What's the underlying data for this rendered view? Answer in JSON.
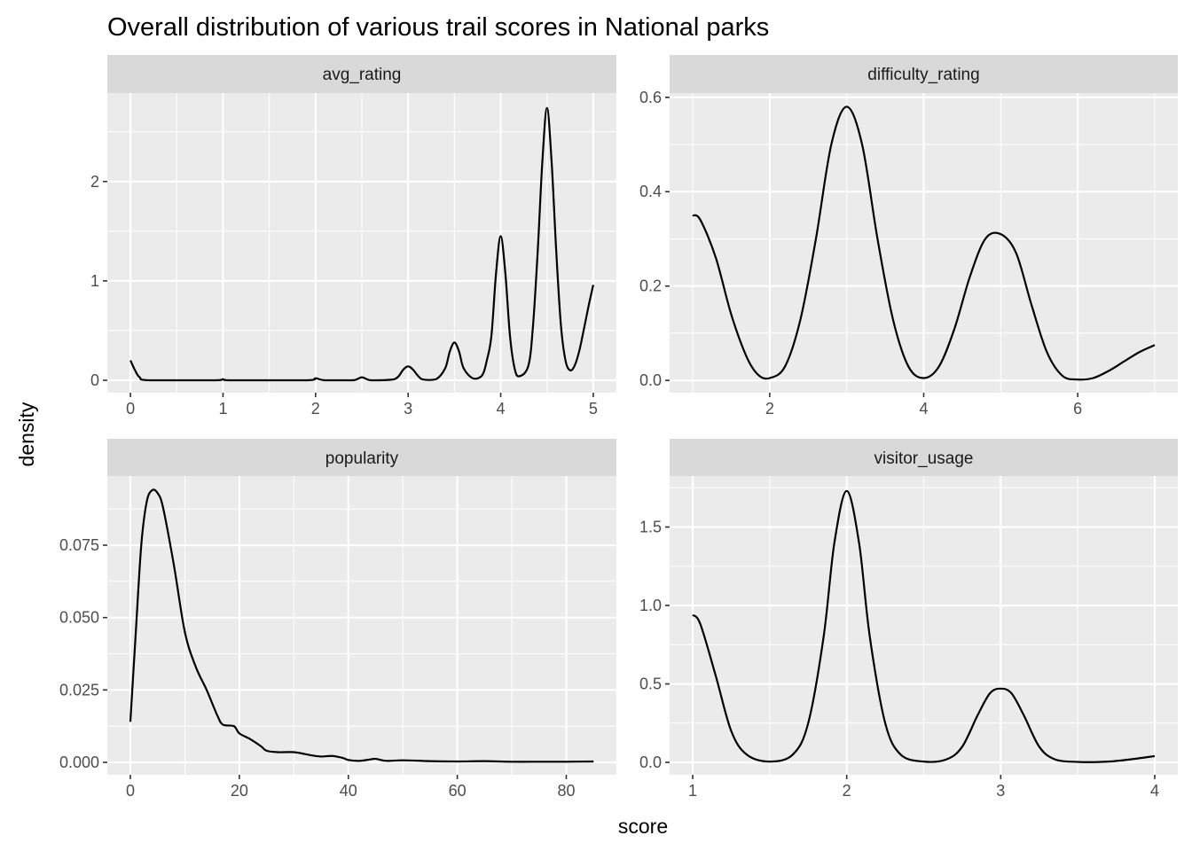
{
  "chart_data": {
    "type": "line",
    "title": "Overall distribution of various trail scores in National parks",
    "xlabel": "score",
    "ylabel": "density",
    "grid": true,
    "facets": [
      {
        "name": "avg_rating",
        "xlim": [
          -0.25,
          5.25
        ],
        "ylim": [
          -0.125,
          2.89
        ],
        "xticks": [
          0,
          1,
          2,
          3,
          4,
          5
        ],
        "xtick_labels": [
          "0",
          "1",
          "2",
          "3",
          "4",
          "5"
        ],
        "xminor": [
          0.5,
          1.5,
          2.5,
          3.5,
          4.5
        ],
        "yticks": [
          0,
          1,
          2
        ],
        "ytick_labels": [
          "0",
          "1",
          "2"
        ],
        "yminor": [
          0.5,
          1.5,
          2.5
        ],
        "x": [
          0,
          0.05,
          0.1,
          0.2,
          0.9,
          1,
          1.1,
          1.9,
          2,
          2.1,
          2.4,
          2.5,
          2.6,
          2.85,
          2.95,
          3,
          3.05,
          3.15,
          3.3,
          3.4,
          3.45,
          3.5,
          3.55,
          3.6,
          3.7,
          3.8,
          3.85,
          3.9,
          3.95,
          4,
          4.05,
          4.1,
          4.15,
          4.2,
          4.3,
          4.35,
          4.4,
          4.45,
          4.5,
          4.55,
          4.6,
          4.65,
          4.7,
          4.75,
          4.8,
          4.85,
          4.9,
          4.95,
          5
        ],
        "y": [
          0.2,
          0.1,
          0.03,
          0,
          0,
          0.01,
          0,
          0,
          0.02,
          0,
          0,
          0.03,
          0,
          0.01,
          0.11,
          0.14,
          0.11,
          0.01,
          0.01,
          0.12,
          0.29,
          0.38,
          0.29,
          0.12,
          0.02,
          0.05,
          0.2,
          0.45,
          1.08,
          1.45,
          1.08,
          0.45,
          0.12,
          0.04,
          0.15,
          0.56,
          1.3,
          2.2,
          2.74,
          2.2,
          1.3,
          0.56,
          0.2,
          0.1,
          0.15,
          0.3,
          0.52,
          0.75,
          0.96
        ]
      },
      {
        "name": "difficulty_rating",
        "xlim": [
          0.7,
          7.3
        ],
        "ylim": [
          -0.026,
          0.609
        ],
        "xticks": [
          2,
          4,
          6
        ],
        "xtick_labels": [
          "2",
          "4",
          "6"
        ],
        "xminor": [
          1,
          3,
          5,
          7
        ],
        "yticks": [
          0,
          0.2,
          0.4,
          0.6
        ],
        "ytick_labels": [
          "0.0",
          "0.2",
          "0.4",
          "0.6"
        ],
        "yminor": [
          0.1,
          0.3,
          0.5
        ],
        "x": [
          1,
          1.1,
          1.3,
          1.5,
          1.7,
          1.85,
          2,
          2.2,
          2.4,
          2.6,
          2.8,
          3,
          3.2,
          3.4,
          3.6,
          3.8,
          4,
          4.2,
          4.4,
          4.6,
          4.8,
          5,
          5.2,
          5.4,
          5.6,
          5.8,
          6,
          6.2,
          6.4,
          6.6,
          6.8,
          7
        ],
        "y": [
          0.35,
          0.34,
          0.26,
          0.14,
          0.05,
          0.012,
          0.005,
          0.03,
          0.13,
          0.3,
          0.5,
          0.58,
          0.5,
          0.3,
          0.13,
          0.03,
          0.005,
          0.03,
          0.11,
          0.22,
          0.3,
          0.31,
          0.27,
          0.16,
          0.06,
          0.01,
          0.002,
          0.005,
          0.02,
          0.04,
          0.06,
          0.075
        ]
      },
      {
        "name": "popularity",
        "xlim": [
          -4.23,
          89.2
        ],
        "ylim": [
          -0.0043,
          0.0989
        ],
        "xticks": [
          0,
          20,
          40,
          60,
          80
        ],
        "xtick_labels": [
          "0",
          "20",
          "40",
          "60",
          "80"
        ],
        "xminor": [
          10,
          30,
          50,
          70
        ],
        "yticks": [
          0,
          0.025,
          0.05,
          0.075
        ],
        "ytick_labels": [
          "0.000",
          "0.025",
          "0.050",
          "0.075"
        ],
        "yminor": [
          0.0125,
          0.0375,
          0.0625,
          0.0875
        ],
        "x": [
          0,
          1,
          2,
          3,
          4,
          5,
          6,
          8,
          10,
          12,
          14,
          16,
          17,
          19,
          20,
          22,
          24,
          25,
          27,
          30,
          33,
          35,
          37,
          39,
          40,
          42,
          44,
          45,
          47,
          50,
          55,
          60,
          65,
          70,
          75,
          80,
          85
        ],
        "y": [
          0.014,
          0.045,
          0.075,
          0.09,
          0.094,
          0.093,
          0.088,
          0.068,
          0.045,
          0.033,
          0.025,
          0.016,
          0.013,
          0.0125,
          0.01,
          0.008,
          0.0055,
          0.004,
          0.0035,
          0.0035,
          0.0025,
          0.002,
          0.0022,
          0.0015,
          0.0008,
          0.0005,
          0.001,
          0.0012,
          0.0005,
          0.0007,
          0.0004,
          0.0003,
          0.0004,
          0.0002,
          0.0002,
          0.0002,
          0.0003
        ]
      },
      {
        "name": "visitor_usage",
        "xlim": [
          0.85,
          4.15
        ],
        "ylim": [
          -0.079,
          1.825
        ],
        "xticks": [
          1,
          2,
          3,
          4
        ],
        "xtick_labels": [
          "1",
          "2",
          "3",
          "4"
        ],
        "xminor": [
          1.5,
          2.5,
          3.5
        ],
        "yticks": [
          0,
          0.5,
          1,
          1.5
        ],
        "ytick_labels": [
          "0.0",
          "0.5",
          "1.0",
          "1.5"
        ],
        "yminor": [
          0.25,
          0.75,
          1.25,
          1.75
        ],
        "x": [
          1,
          1.05,
          1.15,
          1.25,
          1.35,
          1.5,
          1.65,
          1.75,
          1.85,
          1.92,
          2,
          2.08,
          2.15,
          2.25,
          2.35,
          2.5,
          2.65,
          2.75,
          2.85,
          2.93,
          3,
          3.07,
          3.15,
          3.25,
          3.35,
          3.5,
          3.7,
          3.85,
          4
        ],
        "y": [
          0.94,
          0.88,
          0.55,
          0.2,
          0.05,
          0.005,
          0.05,
          0.25,
          0.8,
          1.4,
          1.73,
          1.4,
          0.8,
          0.25,
          0.05,
          0.005,
          0.02,
          0.1,
          0.3,
          0.44,
          0.47,
          0.44,
          0.3,
          0.1,
          0.02,
          0.003,
          0.005,
          0.02,
          0.04
        ]
      }
    ]
  }
}
